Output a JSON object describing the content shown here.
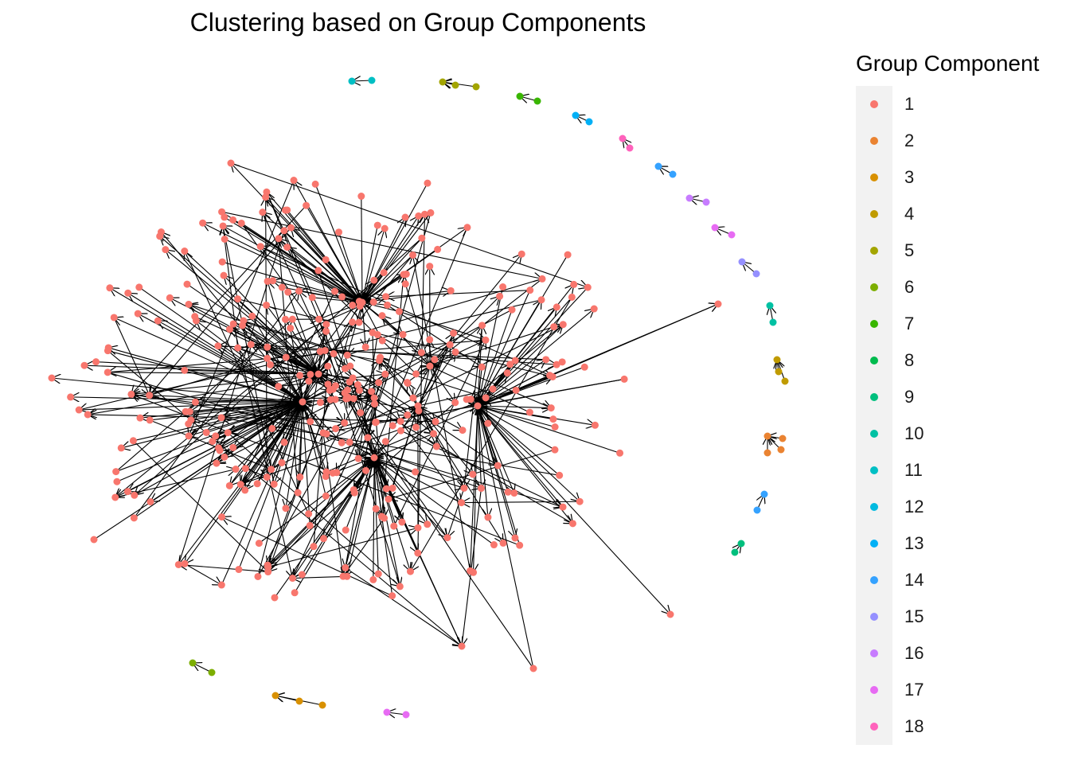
{
  "title": "Clustering based on Group Components",
  "legend": {
    "title": "Group Component",
    "items": [
      {
        "label": "1",
        "color": "#F8766D"
      },
      {
        "label": "2",
        "color": "#EA8331"
      },
      {
        "label": "3",
        "color": "#D89000"
      },
      {
        "label": "4",
        "color": "#C09B00"
      },
      {
        "label": "5",
        "color": "#A3A500"
      },
      {
        "label": "6",
        "color": "#7CAE00"
      },
      {
        "label": "7",
        "color": "#39B600"
      },
      {
        "label": "8",
        "color": "#00BB4E"
      },
      {
        "label": "9",
        "color": "#00BF7D"
      },
      {
        "label": "10",
        "color": "#00C1A3"
      },
      {
        "label": "11",
        "color": "#00BFC4"
      },
      {
        "label": "12",
        "color": "#00BAE0"
      },
      {
        "label": "13",
        "color": "#00B0F6"
      },
      {
        "label": "14",
        "color": "#35A2FF"
      },
      {
        "label": "15",
        "color": "#9590FF"
      },
      {
        "label": "16",
        "color": "#C77CFF"
      },
      {
        "label": "17",
        "color": "#E76BF3"
      },
      {
        "label": "18",
        "color": "#FF62BC"
      }
    ]
  }
}
